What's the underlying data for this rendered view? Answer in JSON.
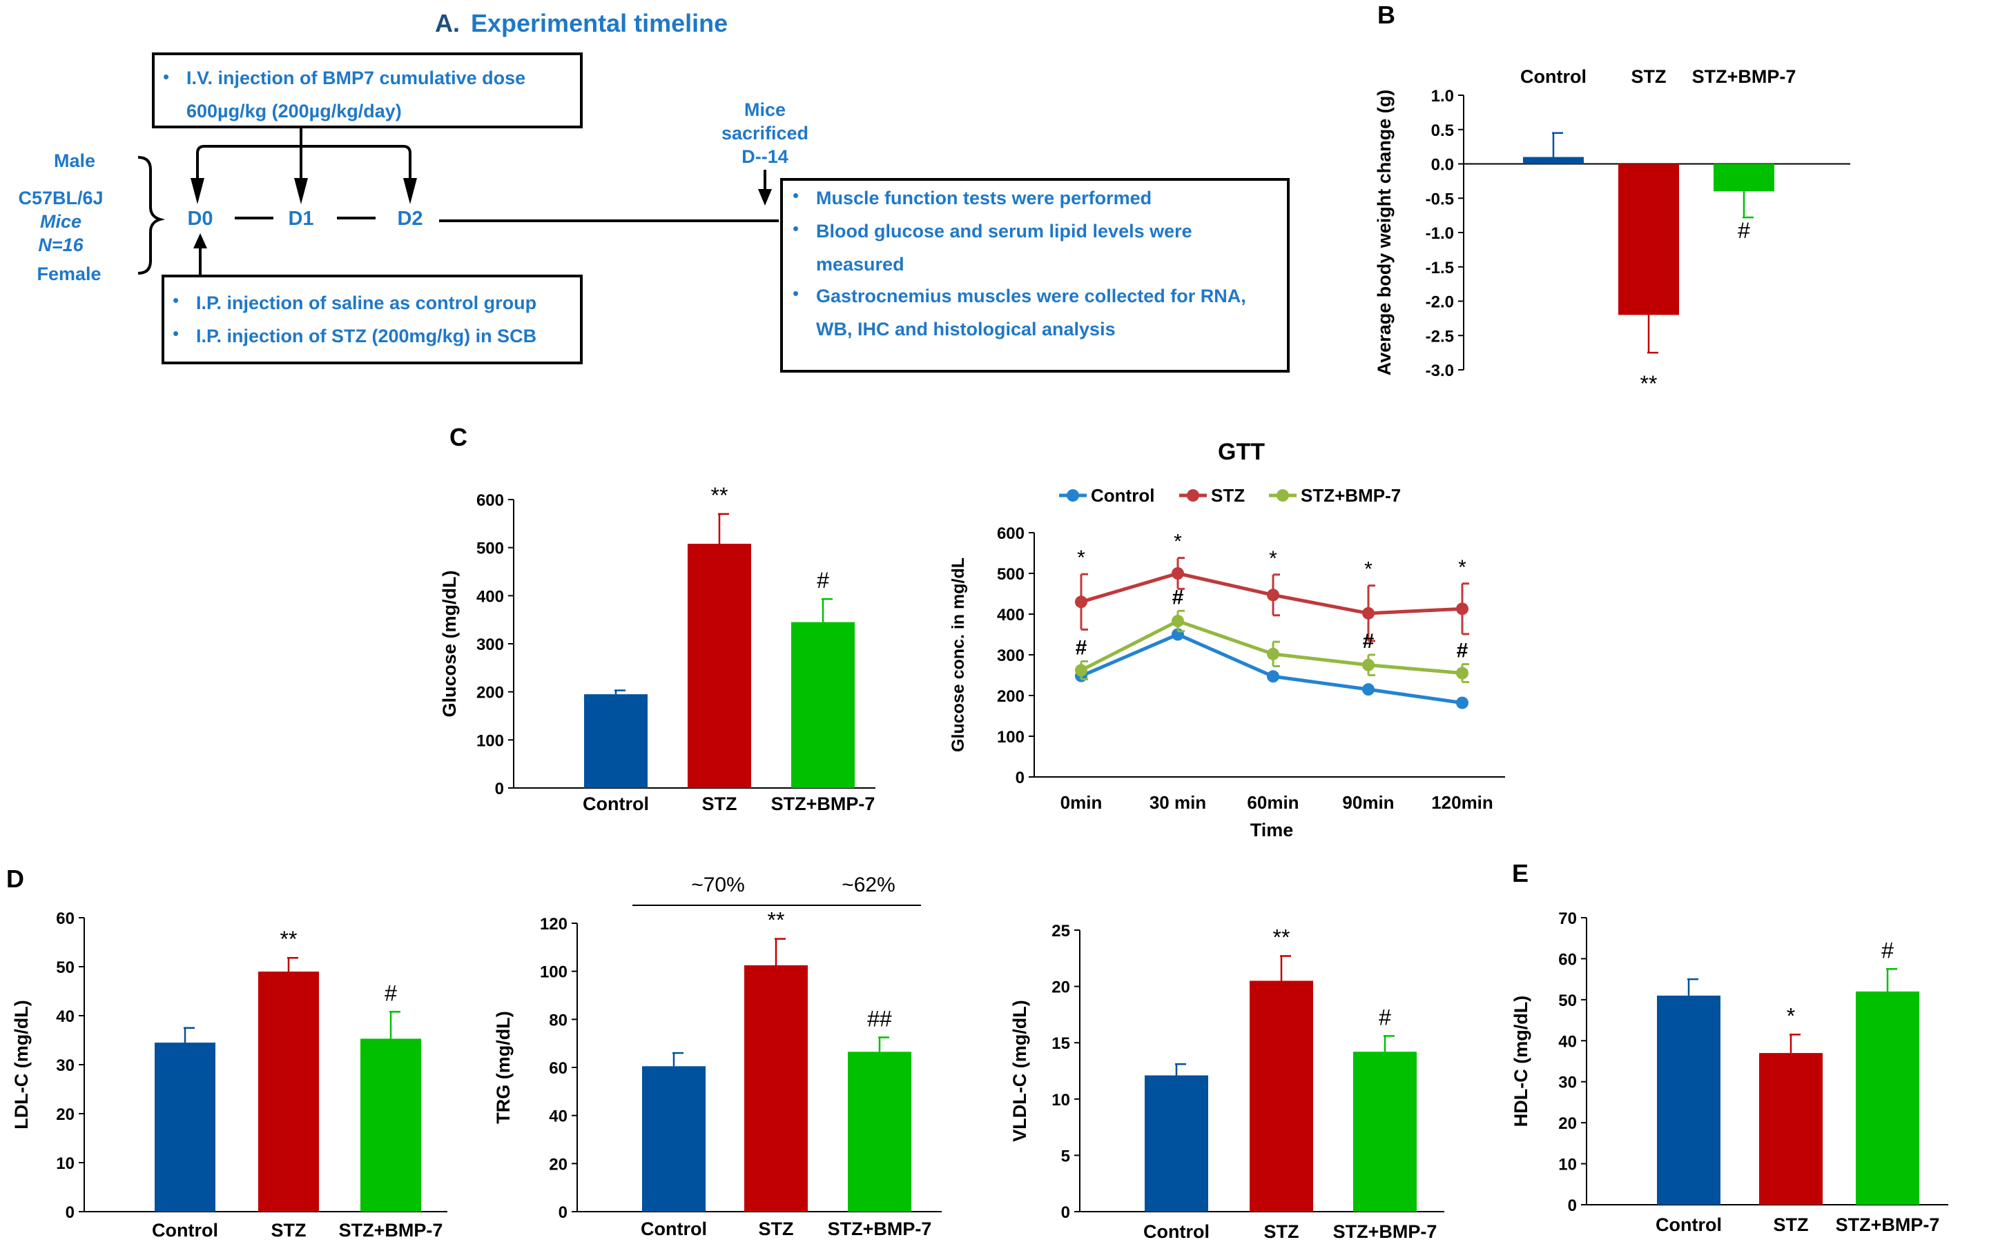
{
  "panel_a": {
    "title_letter": "A.",
    "title_text": "Experimental timeline",
    "iv_box_line1": "I.V. injection of  BMP7 cumulative dose",
    "iv_box_line2": "600µg/kg (200µg/kg/day)",
    "male": "Male",
    "strain": "C57BL/6J",
    "mice": "Mice",
    "n": "N=16",
    "female": "Female",
    "days": [
      "D0",
      "D1",
      "D2"
    ],
    "sacrifice_line1": "Mice",
    "sacrifice_line2": "sacrificed",
    "sacrifice_line3": "D--14",
    "ip_line1": "I.P. injection of saline as control group",
    "ip_line2": "I.P. injection of STZ (200mg/kg) in SCB",
    "outcome_line1": "Muscle function tests were performed",
    "outcome_line2a": "Blood glucose and serum lipid levels were",
    "outcome_line2b": "measured",
    "outcome_line3a": "Gastrocnemius muscles were collected for RNA,",
    "outcome_line3b": "WB, IHC and histological analysis",
    "bullet": "•"
  },
  "colors": {
    "control": "#00519E",
    "stz": "#C00000",
    "bmp": "#00C000",
    "gtt_control": "#2383D1",
    "gtt_stz": "#C0393B",
    "gtt_bmp": "#93B840",
    "text_blue": "#1F78C8"
  },
  "chart_data": [
    {
      "id": "B",
      "type": "bar",
      "panel_label": "B",
      "categories": [
        "Control",
        "STZ",
        "STZ+BMP-7"
      ],
      "values": [
        0.1,
        -2.2,
        -0.4
      ],
      "errors": [
        0.35,
        0.55,
        0.38
      ],
      "ylabel": "Average  body weight change (g)",
      "ylim": [
        -3.0,
        1.0
      ],
      "yticks": [
        "1.0",
        "0.5",
        "0.0",
        "-0.5",
        "-1.0",
        "-1.5",
        "-2.0",
        "-2.5",
        "-3.0"
      ],
      "annotations": [
        "",
        "**",
        "#"
      ]
    },
    {
      "id": "C1",
      "type": "bar",
      "panel_label": "C",
      "categories": [
        "Control",
        "STZ",
        "STZ+BMP-7"
      ],
      "values": [
        195,
        508,
        345
      ],
      "errors": [
        8,
        62,
        48
      ],
      "ylabel": "Glucose (mg/dL)",
      "ylim": [
        0,
        600
      ],
      "yticks": [
        "0",
        "100",
        "200",
        "300",
        "400",
        "500",
        "600"
      ],
      "annotations": [
        "",
        "**",
        "#"
      ]
    },
    {
      "id": "GTT",
      "type": "line",
      "title": "GTT",
      "x": [
        "0min",
        "30 min",
        "60min",
        "90min",
        "120min"
      ],
      "xlabel": "Time",
      "ylabel": "Glucose conc. in mg/dL",
      "ylim": [
        0,
        600
      ],
      "yticks": [
        "0",
        "100",
        "200",
        "300",
        "400",
        "500",
        "600"
      ],
      "series": [
        {
          "name": "Control",
          "values": [
            248,
            350,
            247,
            215,
            182
          ],
          "errors": [
            0,
            0,
            0,
            0,
            0
          ]
        },
        {
          "name": "STZ",
          "values": [
            430,
            500,
            447,
            402,
            413
          ],
          "errors": [
            68,
            38,
            50,
            68,
            62
          ]
        },
        {
          "name": "STZ+BMP-7",
          "values": [
            262,
            383,
            302,
            275,
            255
          ],
          "errors": [
            22,
            25,
            30,
            25,
            22
          ]
        }
      ],
      "stz_marks": [
        "*",
        "*",
        "*",
        "*",
        "*"
      ],
      "bmp_marks": [
        "#",
        "#",
        "",
        "#",
        "#"
      ]
    },
    {
      "id": "LDL",
      "type": "bar",
      "panel_label": "D",
      "categories": [
        "Control",
        "STZ",
        "STZ+BMP-7"
      ],
      "values": [
        34.5,
        49,
        35.3
      ],
      "errors": [
        3.0,
        2.8,
        5.5
      ],
      "ylabel": "LDL-C (mg/dL)",
      "ylim": [
        0,
        60
      ],
      "yticks": [
        "0",
        "10",
        "20",
        "30",
        "40",
        "50",
        "60"
      ],
      "annotations": [
        "",
        "**",
        "#"
      ]
    },
    {
      "id": "TRG",
      "type": "bar",
      "categories": [
        "Control",
        "STZ",
        "STZ+BMP-7"
      ],
      "values": [
        60.5,
        102.5,
        66.5
      ],
      "errors": [
        5.5,
        11,
        6
      ],
      "ylabel": "TRG (mg/dL)",
      "ylim": [
        0,
        120
      ],
      "yticks": [
        "0",
        "20",
        "40",
        "60",
        "80",
        "100",
        "120"
      ],
      "annotations": [
        "",
        "**",
        "##"
      ],
      "bracket_left": "~70%",
      "bracket_right": "~62%"
    },
    {
      "id": "VLDL",
      "type": "bar",
      "categories": [
        "Control",
        "STZ",
        "STZ+BMP-7"
      ],
      "values": [
        12.1,
        20.5,
        14.2
      ],
      "errors": [
        1.0,
        2.2,
        1.4
      ],
      "ylabel": "VLDL-C (mg/dL)",
      "ylim": [
        0,
        25
      ],
      "yticks": [
        "0",
        "5",
        "10",
        "15",
        "20",
        "25"
      ],
      "annotations": [
        "",
        "**",
        "#"
      ]
    },
    {
      "id": "HDL",
      "type": "bar",
      "panel_label": "E",
      "categories": [
        "Control",
        "STZ",
        "STZ+BMP-7"
      ],
      "values": [
        51,
        37,
        52
      ],
      "errors": [
        4,
        4.5,
        5.5
      ],
      "ylabel": "HDL-C (mg/dL)",
      "ylim": [
        0,
        70
      ],
      "yticks": [
        "0",
        "10",
        "20",
        "30",
        "40",
        "50",
        "60",
        "70"
      ],
      "annotations": [
        "",
        "*",
        "#"
      ]
    }
  ]
}
